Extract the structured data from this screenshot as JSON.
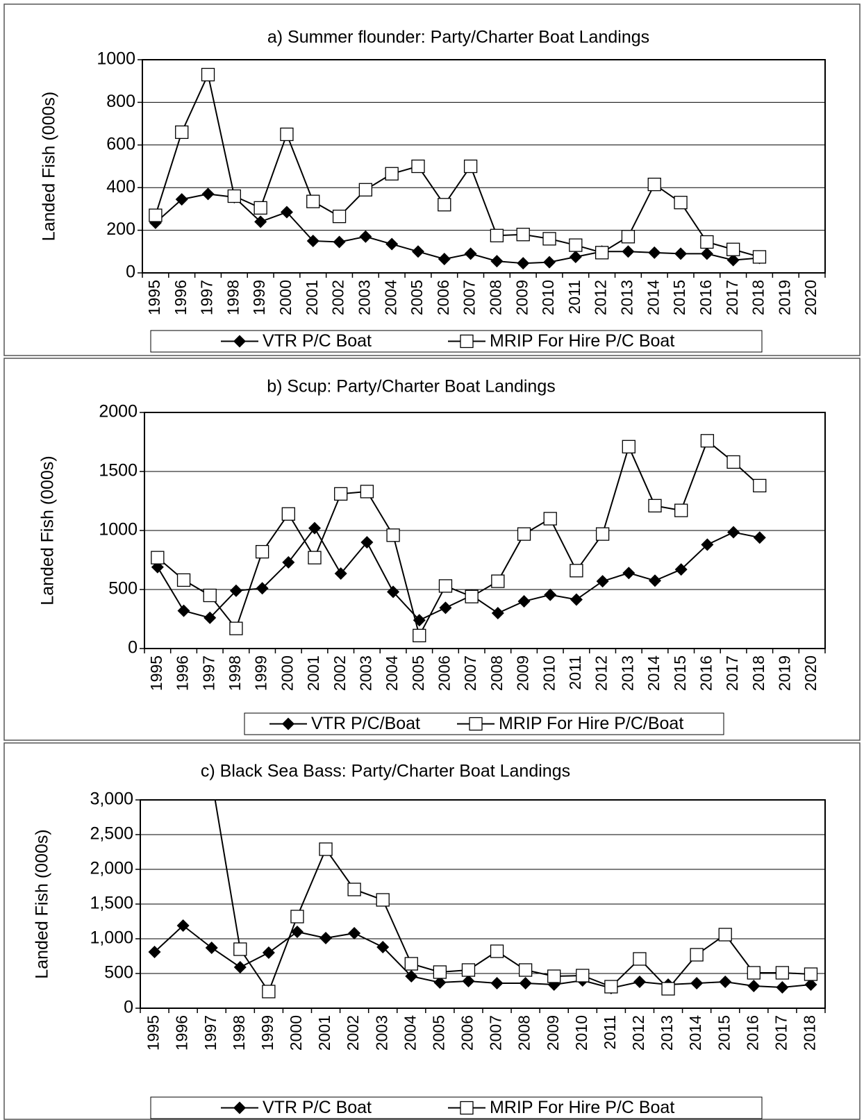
{
  "chart_data": [
    {
      "type": "line",
      "title": "a) Summer flounder: Party/Charter Boat Landings",
      "y_label": "Landed  Fish (000s)",
      "categories": [
        "1995",
        "1996",
        "1997",
        "1998",
        "1999",
        "2000",
        "2001",
        "2002",
        "2003",
        "2004",
        "2005",
        "2006",
        "2007",
        "2008",
        "2009",
        "2010",
        "2011",
        "2012",
        "2013",
        "2014",
        "2015",
        "2016",
        "2017",
        "2018",
        "2019",
        "2020"
      ],
      "ylim": [
        0,
        1000
      ],
      "yticks": [
        0,
        200,
        400,
        600,
        800,
        1000
      ],
      "grid": true,
      "series": [
        {
          "name": "VTR P/C Boat",
          "color": "#000000",
          "marker": "diamond",
          "values": [
            235,
            345,
            370,
            355,
            240,
            285,
            150,
            145,
            170,
            135,
            100,
            65,
            90,
            55,
            45,
            50,
            75,
            100,
            100,
            95,
            90,
            90,
            60,
            70,
            null,
            null
          ]
        },
        {
          "name": "MRIP For Hire P/C Boat",
          "color": "#000000",
          "marker": "square",
          "values": [
            270,
            660,
            930,
            360,
            305,
            650,
            335,
            265,
            390,
            465,
            500,
            320,
            500,
            175,
            180,
            160,
            130,
            95,
            170,
            415,
            330,
            145,
            110,
            75,
            null,
            null
          ]
        }
      ]
    },
    {
      "type": "line",
      "title": "b) Scup: Party/Charter Boat Landings",
      "y_label": "Landed Fish (000s)",
      "categories": [
        "1995",
        "1996",
        "1997",
        "1998",
        "1999",
        "2000",
        "2001",
        "2002",
        "2003",
        "2004",
        "2005",
        "2006",
        "2007",
        "2008",
        "2009",
        "2010",
        "2011",
        "2012",
        "2013",
        "2014",
        "2015",
        "2016",
        "2017",
        "2018",
        "2019",
        "2020"
      ],
      "ylim": [
        0,
        2000
      ],
      "yticks": [
        0,
        500,
        1000,
        1500,
        2000
      ],
      "grid": true,
      "series": [
        {
          "name": "VTR P/C/Boat",
          "color": "#000000",
          "marker": "diamond",
          "values": [
            690,
            320,
            260,
            490,
            510,
            730,
            1020,
            635,
            900,
            480,
            240,
            345,
            450,
            300,
            400,
            455,
            415,
            570,
            640,
            575,
            670,
            880,
            985,
            940,
            null,
            null
          ]
        },
        {
          "name": "MRIP For Hire P/C/Boat",
          "color": "#000000",
          "marker": "square",
          "values": [
            770,
            580,
            450,
            170,
            820,
            1140,
            770,
            1310,
            1330,
            960,
            110,
            530,
            440,
            570,
            970,
            1100,
            660,
            970,
            1710,
            1210,
            1170,
            1760,
            1580,
            1380,
            null,
            null
          ]
        }
      ]
    },
    {
      "type": "line",
      "title": "c) Black Sea Bass: Party/Charter Boat Landings",
      "y_label": "Landed  Fish (000s)",
      "categories": [
        "1995",
        "1996",
        "1997",
        "1998",
        "1999",
        "2000",
        "2001",
        "2002",
        "2003",
        "2004",
        "2005",
        "2006",
        "2007",
        "2008",
        "2009",
        "2010",
        "2011",
        "2012",
        "2013",
        "2014",
        "2015",
        "2016",
        "2017",
        "2018"
      ],
      "ylim": [
        0,
        3000
      ],
      "yticks": [
        0,
        500,
        {
          "value": 1000,
          "label": "1,000"
        },
        {
          "value": 1500,
          "label": "1,500"
        },
        {
          "value": 2000,
          "label": "2,000"
        },
        {
          "value": 2500,
          "label": "2,500"
        },
        {
          "value": 3000,
          "label": "3,000"
        }
      ],
      "grid": true,
      "series": [
        {
          "name": "VTR P/C Boat",
          "color": "#000000",
          "marker": "diamond",
          "values": [
            810,
            1190,
            870,
            590,
            800,
            1100,
            1010,
            1080,
            880,
            460,
            370,
            390,
            360,
            360,
            340,
            400,
            290,
            380,
            340,
            360,
            380,
            320,
            300,
            340
          ]
        },
        {
          "name": "MRIP For Hire P/C Boat",
          "color": "#000000",
          "marker": "square",
          "values": [
            null,
            null,
            3300,
            850,
            240,
            1320,
            2290,
            1710,
            1560,
            640,
            520,
            550,
            820,
            550,
            460,
            470,
            310,
            710,
            280,
            770,
            1060,
            510,
            510,
            490
          ]
        }
      ]
    }
  ]
}
